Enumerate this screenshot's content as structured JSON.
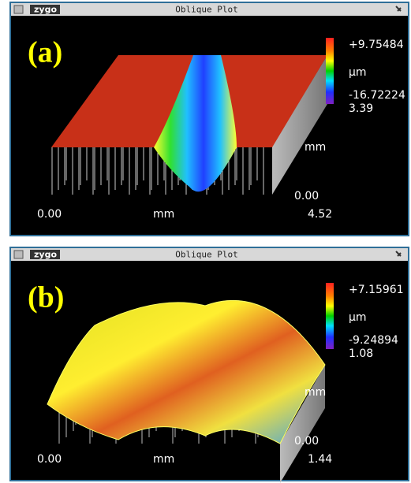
{
  "panels": [
    {
      "brand": "zygo",
      "window_title": "Oblique Plot",
      "label": "(a)",
      "scale_max": "+9.75484",
      "scale_unit": "µm",
      "scale_min": "-16.72224",
      "y_max": "3.39",
      "y_unit": "mm",
      "y_min": "0.00",
      "x_min": "0.00",
      "x_unit": "mm",
      "x_max": "4.52"
    },
    {
      "brand": "zygo",
      "window_title": "Oblique Plot",
      "label": "(b)",
      "scale_max": "+7.15961",
      "scale_unit": "µm",
      "scale_min": "-9.24894",
      "y_max": "1.08",
      "y_unit": "mm",
      "y_min": "0.00",
      "x_min": "0.00",
      "x_unit": "mm",
      "x_max": "1.44"
    }
  ]
}
